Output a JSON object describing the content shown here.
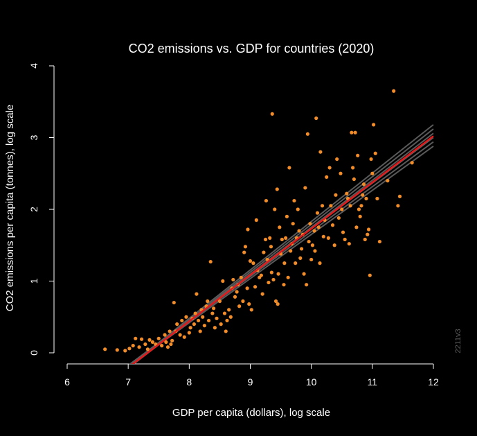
{
  "chart_data": {
    "type": "scatter",
    "title": "CO2 emissions vs. GDP for countries (2020)",
    "xlabel": "GDP per capita (dollars), log scale",
    "ylabel": "CO2 emissions per capita (tonnes), log scale",
    "xlim": [
      6,
      12
    ],
    "ylim": [
      0,
      4
    ],
    "xticks": [
      6,
      7,
      8,
      9,
      10,
      11,
      12
    ],
    "yticks": [
      0,
      1,
      2,
      3,
      4
    ],
    "watermark": "2211v3",
    "background": "#000000",
    "point_color": "#f28c28",
    "fit_color": "#e31a1c",
    "band_color": "#5a5a5a",
    "fit_line": {
      "intercept": -4.72,
      "slope": 0.645
    },
    "band_lines": [
      {
        "intercept": -4.92,
        "slope": 0.675
      },
      {
        "intercept": -4.86,
        "slope": 0.665
      },
      {
        "intercept": -4.8,
        "slope": 0.655
      },
      {
        "intercept": -4.62,
        "slope": 0.635
      },
      {
        "intercept": -4.56,
        "slope": 0.625
      },
      {
        "intercept": -4.5,
        "slope": 0.615
      }
    ],
    "points": [
      [
        6.62,
        0.05
      ],
      [
        6.82,
        0.04
      ],
      [
        6.95,
        0.03
      ],
      [
        7.02,
        0.06
      ],
      [
        7.08,
        0.1
      ],
      [
        7.12,
        0.2
      ],
      [
        7.18,
        0.08
      ],
      [
        7.22,
        0.19
      ],
      [
        7.28,
        0.12
      ],
      [
        7.32,
        0.05
      ],
      [
        7.35,
        0.18
      ],
      [
        7.4,
        0.15
      ],
      [
        7.45,
        0.12
      ],
      [
        7.5,
        0.2
      ],
      [
        7.55,
        0.1
      ],
      [
        7.6,
        0.25
      ],
      [
        7.62,
        0.15
      ],
      [
        7.65,
        0.08
      ],
      [
        7.68,
        0.3
      ],
      [
        7.7,
        0.12
      ],
      [
        7.72,
        0.17
      ],
      [
        7.75,
        0.7
      ],
      [
        7.78,
        0.3
      ],
      [
        7.8,
        0.4
      ],
      [
        7.85,
        0.25
      ],
      [
        7.88,
        0.45
      ],
      [
        7.92,
        0.22
      ],
      [
        7.95,
        0.5
      ],
      [
        8.0,
        0.28
      ],
      [
        8.02,
        0.35
      ],
      [
        8.05,
        0.48
      ],
      [
        8.08,
        0.4
      ],
      [
        8.1,
        0.55
      ],
      [
        8.12,
        0.82
      ],
      [
        8.15,
        0.45
      ],
      [
        8.18,
        0.3
      ],
      [
        8.2,
        0.6
      ],
      [
        8.22,
        0.5
      ],
      [
        8.25,
        0.38
      ],
      [
        8.28,
        0.65
      ],
      [
        8.3,
        0.72
      ],
      [
        8.32,
        0.45
      ],
      [
        8.35,
        1.27
      ],
      [
        8.38,
        0.55
      ],
      [
        8.4,
        0.62
      ],
      [
        8.42,
        0.35
      ],
      [
        8.45,
        0.48
      ],
      [
        8.5,
        0.72
      ],
      [
        8.52,
        0.4
      ],
      [
        8.55,
        1.0
      ],
      [
        8.58,
        0.55
      ],
      [
        8.6,
        0.3
      ],
      [
        8.62,
        0.45
      ],
      [
        8.65,
        0.6
      ],
      [
        8.68,
        0.5
      ],
      [
        8.7,
        0.9
      ],
      [
        8.72,
        1.02
      ],
      [
        8.75,
        0.78
      ],
      [
        8.78,
        0.85
      ],
      [
        8.8,
        0.95
      ],
      [
        8.82,
        0.65
      ],
      [
        8.85,
        1.05
      ],
      [
        8.88,
        0.72
      ],
      [
        8.9,
        1.4
      ],
      [
        8.92,
        1.48
      ],
      [
        8.95,
        0.9
      ],
      [
        8.96,
        1.72
      ],
      [
        8.98,
        0.68
      ],
      [
        9.0,
        1.28
      ],
      [
        9.02,
        0.6
      ],
      [
        9.05,
        1.25
      ],
      [
        9.08,
        0.92
      ],
      [
        9.1,
        1.85
      ],
      [
        9.12,
        1.15
      ],
      [
        9.15,
        1.05
      ],
      [
        9.18,
        1.08
      ],
      [
        9.2,
        0.82
      ],
      [
        9.22,
        1.4
      ],
      [
        9.25,
        1.58
      ],
      [
        9.26,
        2.12
      ],
      [
        9.28,
        1.3
      ],
      [
        9.3,
        0.98
      ],
      [
        9.32,
        1.6
      ],
      [
        9.34,
        1.48
      ],
      [
        9.35,
        1.12
      ],
      [
        9.36,
        3.33
      ],
      [
        9.38,
        1.02
      ],
      [
        9.4,
        2.0
      ],
      [
        9.42,
        0.72
      ],
      [
        9.44,
        2.28
      ],
      [
        9.45,
        0.68
      ],
      [
        9.46,
        1.1
      ],
      [
        9.48,
        1.75
      ],
      [
        9.5,
        1.38
      ],
      [
        9.52,
        1.58
      ],
      [
        9.55,
        0.95
      ],
      [
        9.56,
        1.25
      ],
      [
        9.58,
        1.6
      ],
      [
        9.6,
        1.9
      ],
      [
        9.62,
        1.05
      ],
      [
        9.64,
        2.58
      ],
      [
        9.66,
        1.42
      ],
      [
        9.68,
        1.52
      ],
      [
        9.7,
        1.8
      ],
      [
        9.72,
        2.12
      ],
      [
        9.74,
        1.25
      ],
      [
        9.76,
        1.6
      ],
      [
        9.78,
        2.0
      ],
      [
        9.8,
        1.7
      ],
      [
        9.82,
        1.32
      ],
      [
        9.84,
        1.45
      ],
      [
        9.86,
        1.65
      ],
      [
        9.88,
        1.1
      ],
      [
        9.9,
        2.3
      ],
      [
        9.92,
        0.95
      ],
      [
        9.94,
        3.05
      ],
      [
        9.96,
        1.55
      ],
      [
        9.98,
        1.8
      ],
      [
        10.0,
        1.3
      ],
      [
        10.02,
        1.5
      ],
      [
        10.05,
        1.7
      ],
      [
        10.06,
        1.42
      ],
      [
        10.08,
        3.27
      ],
      [
        10.1,
        1.95
      ],
      [
        10.12,
        1.75
      ],
      [
        10.14,
        1.25
      ],
      [
        10.15,
        2.8
      ],
      [
        10.18,
        2.05
      ],
      [
        10.2,
        1.62
      ],
      [
        10.22,
        1.85
      ],
      [
        10.25,
        2.45
      ],
      [
        10.28,
        1.6
      ],
      [
        10.3,
        2.58
      ],
      [
        10.32,
        2.05
      ],
      [
        10.35,
        1.78
      ],
      [
        10.38,
        1.5
      ],
      [
        10.4,
        2.2
      ],
      [
        10.42,
        2.7
      ],
      [
        10.45,
        1.88
      ],
      [
        10.48,
        2.5
      ],
      [
        10.5,
        2.0
      ],
      [
        10.52,
        1.68
      ],
      [
        10.55,
        1.58
      ],
      [
        10.58,
        2.22
      ],
      [
        10.6,
        2.15
      ],
      [
        10.62,
        1.52
      ],
      [
        10.64,
        2.05
      ],
      [
        10.66,
        3.07
      ],
      [
        10.68,
        2.58
      ],
      [
        10.7,
        2.42
      ],
      [
        10.72,
        3.07
      ],
      [
        10.74,
        1.75
      ],
      [
        10.76,
        2.75
      ],
      [
        10.78,
        2.0
      ],
      [
        10.8,
        1.9
      ],
      [
        10.82,
        2.05
      ],
      [
        10.84,
        2.2
      ],
      [
        10.86,
        2.35
      ],
      [
        10.88,
        1.58
      ],
      [
        10.9,
        2.15
      ],
      [
        10.92,
        1.65
      ],
      [
        10.94,
        1.72
      ],
      [
        10.96,
        1.08
      ],
      [
        10.98,
        2.7
      ],
      [
        11.0,
        2.5
      ],
      [
        11.02,
        3.18
      ],
      [
        11.05,
        2.78
      ],
      [
        11.08,
        2.15
      ],
      [
        11.12,
        1.55
      ],
      [
        11.25,
        2.4
      ],
      [
        11.35,
        3.65
      ],
      [
        11.42,
        2.05
      ],
      [
        11.45,
        2.18
      ],
      [
        11.65,
        2.65
      ]
    ]
  }
}
